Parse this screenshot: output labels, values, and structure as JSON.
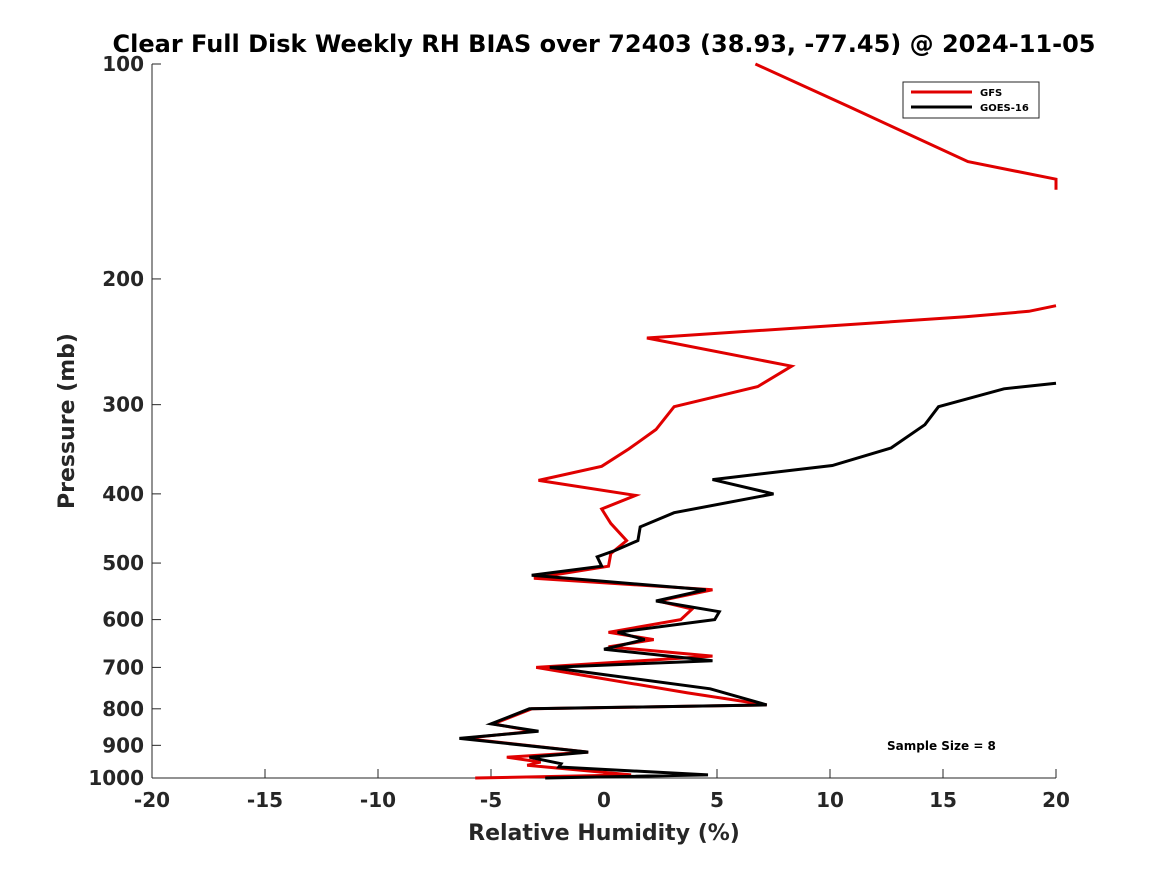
{
  "chart_data": {
    "type": "line",
    "title": "Clear Full Disk Weekly RH BIAS over 72403 (38.93, -77.45) @ 2024-11-05",
    "xlabel": "Relative Humidity (%)",
    "ylabel": "Pressure (mb)",
    "xlim": [
      -20,
      20
    ],
    "ylim": [
      1000,
      100
    ],
    "yscale": "log",
    "x_ticks": [
      "-20",
      "-15",
      "-10",
      "-5",
      "0",
      "5",
      "10",
      "15",
      "20"
    ],
    "y_ticks": [
      "100",
      "200",
      "300",
      "400",
      "500",
      "600",
      "700",
      "800",
      "900",
      "1000"
    ],
    "legend_position": "top-right",
    "annotation": "Sample Size = 8",
    "series": [
      {
        "name": "GFS",
        "color": "#e00000",
        "points": [
          [
            6.7,
            100
          ],
          [
            10.9,
            115
          ],
          [
            16.1,
            137
          ],
          [
            20.0,
            145
          ],
          [
            20.0,
            150
          ],
          null,
          [
            20.0,
            218
          ],
          [
            18.8,
            222
          ],
          [
            16.0,
            226
          ],
          [
            1.9,
            242
          ],
          [
            8.3,
            265
          ],
          [
            6.8,
            283
          ],
          [
            3.1,
            302
          ],
          [
            2.3,
            325
          ],
          [
            1.1,
            346
          ],
          [
            -0.1,
            366
          ],
          [
            -2.9,
            383
          ],
          [
            1.4,
            402
          ],
          [
            -0.1,
            420
          ],
          [
            0.3,
            440
          ],
          [
            1.0,
            465
          ],
          [
            0.3,
            485
          ],
          [
            0.2,
            505
          ],
          [
            -3.1,
            525
          ],
          [
            4.8,
            545
          ],
          [
            2.4,
            565
          ],
          [
            3.9,
            580
          ],
          [
            3.4,
            600
          ],
          [
            0.2,
            625
          ],
          [
            2.2,
            640
          ],
          [
            0.2,
            655
          ],
          [
            4.8,
            675
          ],
          [
            -3.0,
            700
          ],
          [
            3.7,
            760
          ],
          [
            7.2,
            790
          ],
          [
            -3.2,
            800
          ],
          [
            -4.9,
            840
          ],
          [
            -3.1,
            860
          ],
          [
            -6.2,
            880
          ],
          [
            -0.7,
            920
          ],
          [
            -4.3,
            935
          ],
          [
            -2.8,
            950
          ],
          [
            -3.4,
            960
          ],
          [
            1.2,
            990
          ],
          [
            -5.7,
            1000
          ]
        ]
      },
      {
        "name": "GOES-16",
        "color": "#000000",
        "points": [
          [
            20.0,
            280
          ],
          [
            17.7,
            285
          ],
          [
            14.8,
            302
          ],
          [
            14.2,
            320
          ],
          [
            12.7,
            345
          ],
          [
            10.1,
            365
          ],
          [
            4.8,
            382
          ],
          [
            7.5,
            400
          ],
          [
            3.1,
            425
          ],
          [
            1.6,
            445
          ],
          [
            1.5,
            465
          ],
          [
            0.5,
            480
          ],
          [
            -0.3,
            490
          ],
          [
            -0.1,
            505
          ],
          [
            -3.2,
            520
          ],
          [
            4.5,
            545
          ],
          [
            2.3,
            565
          ],
          [
            5.1,
            585
          ],
          [
            4.9,
            600
          ],
          [
            0.6,
            625
          ],
          [
            1.8,
            640
          ],
          [
            0.0,
            660
          ],
          [
            4.8,
            685
          ],
          [
            -2.4,
            700
          ],
          [
            4.7,
            750
          ],
          [
            7.2,
            790
          ],
          [
            -3.3,
            800
          ],
          [
            -5.0,
            840
          ],
          [
            -2.9,
            860
          ],
          [
            -6.4,
            880
          ],
          [
            -0.7,
            920
          ],
          [
            -3.3,
            935
          ],
          [
            -1.9,
            955
          ],
          [
            -2.0,
            965
          ],
          [
            4.6,
            990
          ],
          [
            -2.6,
            1000
          ]
        ]
      }
    ]
  }
}
